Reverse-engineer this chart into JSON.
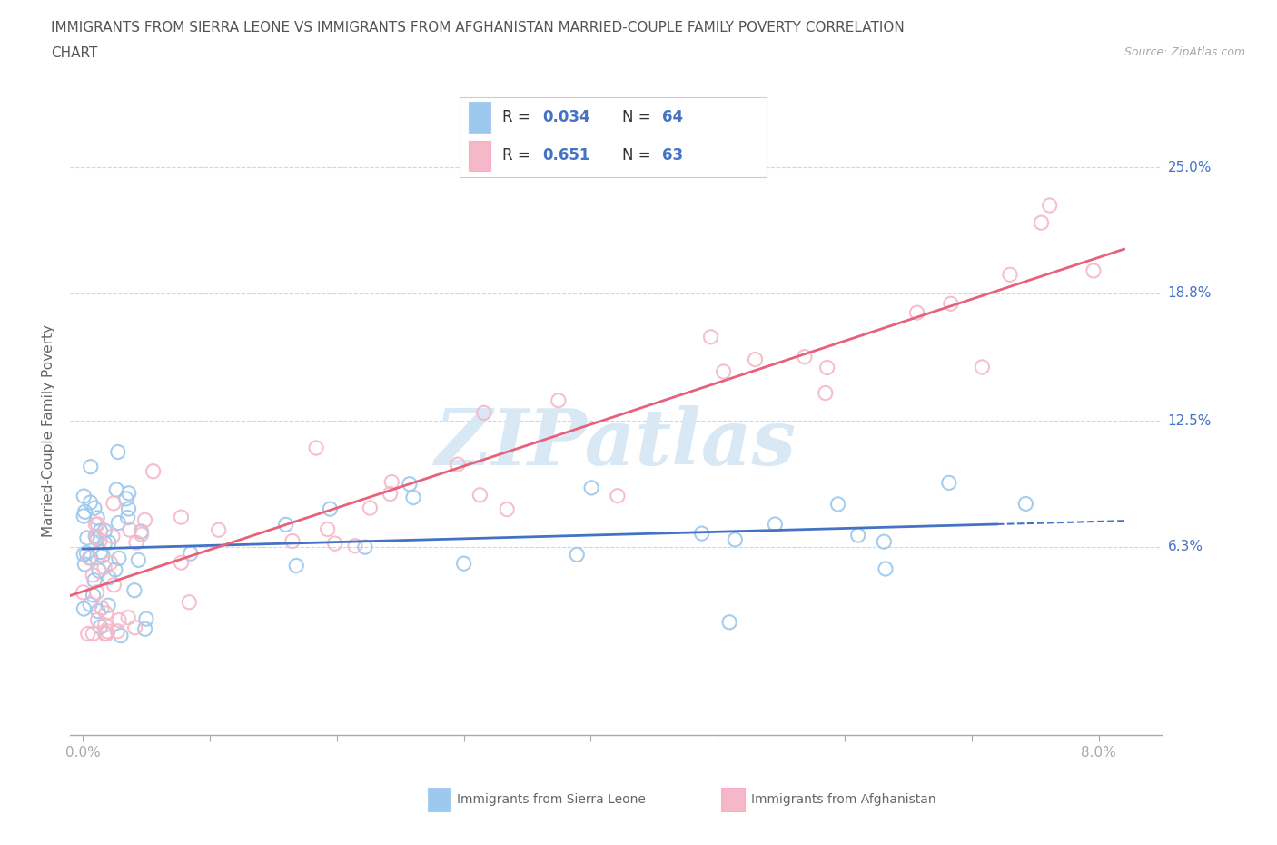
{
  "title_line1": "IMMIGRANTS FROM SIERRA LEONE VS IMMIGRANTS FROM AFGHANISTAN MARRIED-COUPLE FAMILY POVERTY CORRELATION",
  "title_line2": "CHART",
  "source": "Source: ZipAtlas.com",
  "ylabel": "Married-Couple Family Poverty",
  "xtick_labels_shown": [
    "0.0%",
    "8.0%"
  ],
  "xtick_vals_shown": [
    0.0,
    0.08
  ],
  "ytick_labels": [
    "25.0%",
    "18.8%",
    "12.5%",
    "6.3%"
  ],
  "ytick_vals": [
    0.25,
    0.188,
    0.125,
    0.063
  ],
  "xlim": [
    -0.001,
    0.085
  ],
  "ylim": [
    -0.03,
    0.27
  ],
  "sierra_leone_R": 0.034,
  "sierra_leone_N": 64,
  "afghanistan_R": 0.651,
  "afghanistan_N": 63,
  "sierra_leone_color": "#9DC8ED",
  "afghanistan_color": "#F5B8C8",
  "sierra_leone_line_color": "#4472C4",
  "afghanistan_line_color": "#E8607A",
  "sl_line_solid_end": 0.072,
  "sl_line_dashed_start": 0.072,
  "sl_line_end": 0.082,
  "watermark_text": "ZIPatlas",
  "watermark_color": "#D8E8F5",
  "background_color": "#FFFFFF",
  "legend_text_color_R": "#333333",
  "legend_value_color": "#4472C4",
  "bottom_legend_sl": "Immigrants from Sierra Leone",
  "bottom_legend_af": "Immigrants from Afghanistan"
}
